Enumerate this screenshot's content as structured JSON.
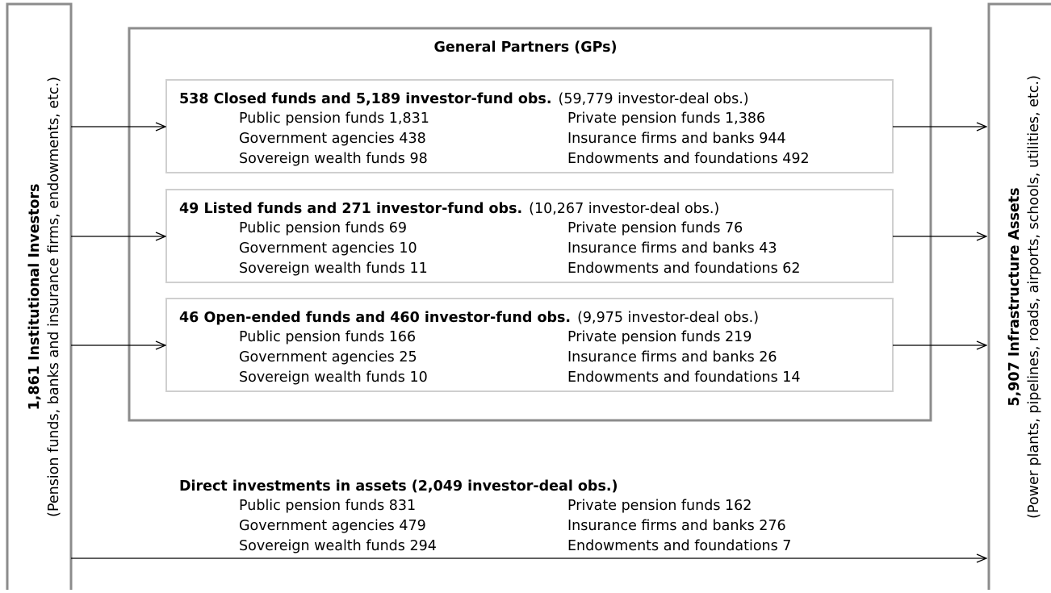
{
  "left": {
    "title": "1,861 Institutional Investors",
    "subtitle": "(Pension funds, banks and insurance firms, endowments, etc.)"
  },
  "right": {
    "title": "5,907 Infrastructure Assets",
    "subtitle": "(Power plants, pipelines, roads, airports, schools, utilities, etc.)"
  },
  "gps": {
    "title": "General Partners (GPs)",
    "funds": [
      {
        "title": "538 Closed funds and 5,189 investor-fund obs.",
        "note": "(59,779 investor-deal obs.)",
        "items": [
          "Public pension funds 1,831",
          "Private pension funds 1,386",
          "Government agencies 438",
          "Insurance firms and banks 944",
          "Sovereign wealth funds 98",
          "Endowments and foundations 492"
        ]
      },
      {
        "title": "49 Listed funds and 271 investor-fund obs.",
        "note": "(10,267 investor-deal obs.)",
        "items": [
          "Public pension funds 69",
          "Private pension funds 76",
          "Government agencies 10",
          "Insurance firms and banks 43",
          "Sovereign wealth funds 11",
          "Endowments and foundations 62"
        ]
      },
      {
        "title": "46 Open-ended funds and 460 investor-fund obs.",
        "note": "(9,975 investor-deal obs.)",
        "items": [
          "Public pension funds 166",
          "Private pension funds 219",
          "Government agencies 25",
          "Insurance firms and banks 26",
          "Sovereign wealth funds 10",
          "Endowments and foundations 14"
        ]
      }
    ]
  },
  "direct": {
    "title": "Direct investments in assets (2,049 investor-deal obs.)",
    "items": [
      "Public pension funds 831",
      "Private pension funds 162",
      "Government agencies 479",
      "Insurance firms and banks 276",
      "Sovereign wealth funds 294",
      "Endowments and foundations 7"
    ]
  }
}
